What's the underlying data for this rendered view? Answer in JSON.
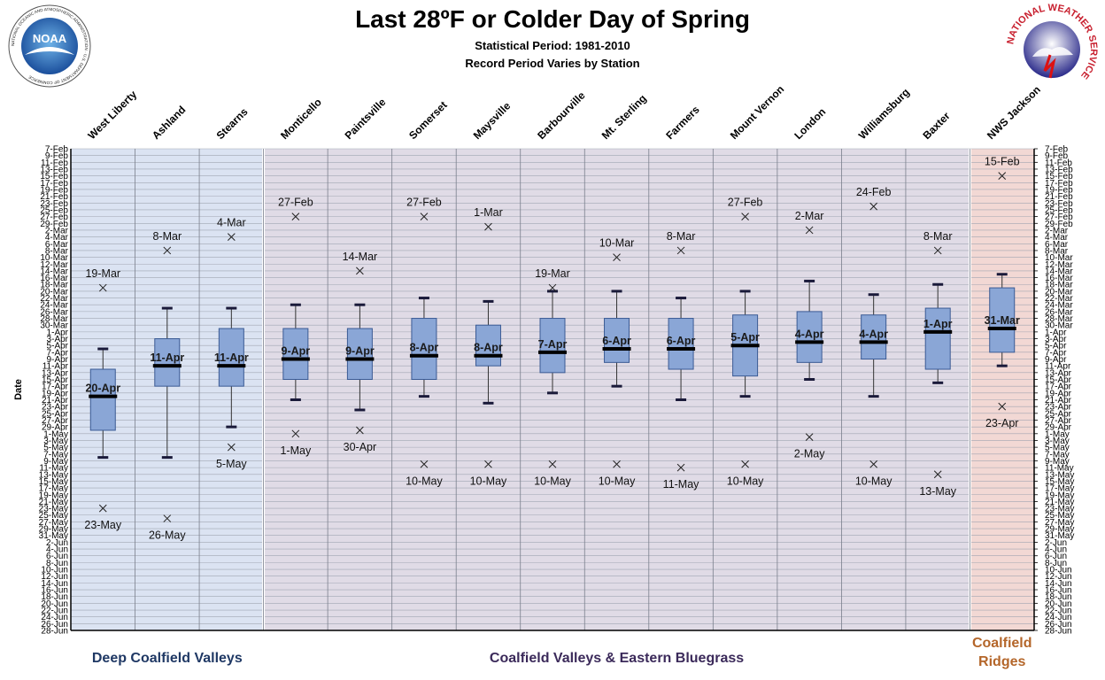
{
  "header": {
    "title": "Last 28ºF or Colder Day of Spring",
    "subtitle1": "Statistical Period: 1981-2010",
    "subtitle2": "Record Period Varies by Station"
  },
  "logos": {
    "noaa_text": "NOAA",
    "noaa_ring_text": "NATIONAL OCEANIC AND ATMOSPHERIC ADMINISTRATION · U.S. DEPARTMENT OF COMMERCE",
    "nws_ring_text": "NATIONAL WEATHER SERVICE"
  },
  "colors": {
    "deep_bg": "#dbe3f2",
    "mid_bg": "#e0dbe6",
    "ridge_bg": "#f2d8d4",
    "box_fill": "#8aa6d6",
    "box_stroke": "#3a5a94",
    "group1_label": "#1f3864",
    "group2_label": "#3b2a5a",
    "group3_label": "#b4662a"
  },
  "chart_data": {
    "type": "box",
    "ylabel": "Date",
    "y_axis_dates": [
      "7-Feb",
      "9-Feb",
      "11-Feb",
      "13-Feb",
      "15-Feb",
      "17-Feb",
      "19-Feb",
      "21-Feb",
      "23-Feb",
      "25-Feb",
      "27-Feb",
      "29-Feb",
      "2-Mar",
      "4-Mar",
      "6-Mar",
      "8-Mar",
      "10-Mar",
      "12-Mar",
      "14-Mar",
      "16-Mar",
      "18-Mar",
      "20-Mar",
      "22-Mar",
      "24-Mar",
      "26-Mar",
      "28-Mar",
      "30-Mar",
      "1-Apr",
      "3-Apr",
      "5-Apr",
      "7-Apr",
      "9-Apr",
      "11-Apr",
      "13-Apr",
      "15-Apr",
      "17-Apr",
      "19-Apr",
      "21-Apr",
      "23-Apr",
      "25-Apr",
      "27-Apr",
      "29-Apr",
      "1-May",
      "3-May",
      "5-May",
      "7-May",
      "9-May",
      "11-May",
      "13-May",
      "15-May",
      "17-May",
      "19-May",
      "21-May",
      "23-May",
      "25-May",
      "27-May",
      "29-May",
      "31-May",
      "2-Jun",
      "4-Jun",
      "6-Jun",
      "8-Jun",
      "10-Jun",
      "12-Jun",
      "14-Jun",
      "16-Jun",
      "18-Jun",
      "20-Jun",
      "22-Jun",
      "24-Jun",
      "26-Jun",
      "28-Jun"
    ],
    "groups": [
      {
        "label": "Deep Coalfield Valleys",
        "stations": 3
      },
      {
        "label": "Coalfield Valleys & Eastern Bluegrass",
        "stations": 11
      },
      {
        "label": "Coalfield Ridges",
        "stations": 1
      }
    ],
    "stations": [
      {
        "name": "West Liberty",
        "record_early": "19-Mar",
        "whisker_low": "6-Apr",
        "q1": "12-Apr",
        "median": "20-Apr",
        "q3": "30-Apr",
        "whisker_high": "8-May",
        "record_late": "23-May"
      },
      {
        "name": "Ashland",
        "record_early": "8-Mar",
        "whisker_low": "25-Mar",
        "q1": "3-Apr",
        "median": "11-Apr",
        "q3": "17-Apr",
        "whisker_high": "8-May",
        "record_late": "26-May"
      },
      {
        "name": "Stearns",
        "record_early": "4-Mar",
        "whisker_low": "25-Mar",
        "q1": "31-Mar",
        "median": "11-Apr",
        "q3": "17-Apr",
        "whisker_high": "29-Apr",
        "record_late": "5-May"
      },
      {
        "name": "Monticello",
        "record_early": "27-Feb",
        "whisker_low": "24-Mar",
        "q1": "31-Mar",
        "median": "9-Apr",
        "q3": "15-Apr",
        "whisker_high": "21-Apr",
        "record_late": "1-May"
      },
      {
        "name": "Paintsville",
        "record_early": "14-Mar",
        "whisker_low": "24-Mar",
        "q1": "31-Mar",
        "median": "9-Apr",
        "q3": "15-Apr",
        "whisker_high": "24-Apr",
        "record_late": "30-Apr"
      },
      {
        "name": "Somerset",
        "record_early": "27-Feb",
        "whisker_low": "22-Mar",
        "q1": "28-Mar",
        "median": "8-Apr",
        "q3": "15-Apr",
        "whisker_high": "20-Apr",
        "record_late": "10-May"
      },
      {
        "name": "Maysville",
        "record_early": "1-Mar",
        "whisker_low": "23-Mar",
        "q1": "30-Mar",
        "median": "8-Apr",
        "q3": "11-Apr",
        "whisker_high": "22-Apr",
        "record_late": "10-May"
      },
      {
        "name": "Barbourville",
        "record_early": "19-Mar",
        "whisker_low": "20-Mar",
        "q1": "28-Mar",
        "median": "7-Apr",
        "q3": "13-Apr",
        "whisker_high": "19-Apr",
        "record_late": "10-May"
      },
      {
        "name": "Mt. Sterling",
        "record_early": "10-Mar",
        "whisker_low": "20-Mar",
        "q1": "28-Mar",
        "median": "6-Apr",
        "q3": "10-Apr",
        "whisker_high": "17-Apr",
        "record_late": "10-May"
      },
      {
        "name": "Farmers",
        "record_early": "8-Mar",
        "whisker_low": "22-Mar",
        "q1": "28-Mar",
        "median": "6-Apr",
        "q3": "12-Apr",
        "whisker_high": "21-Apr",
        "record_late": "11-May"
      },
      {
        "name": "Mount Vernon",
        "record_early": "27-Feb",
        "whisker_low": "20-Mar",
        "q1": "27-Mar",
        "median": "5-Apr",
        "q3": "14-Apr",
        "whisker_high": "20-Apr",
        "record_late": "10-May"
      },
      {
        "name": "London",
        "record_early": "2-Mar",
        "whisker_low": "17-Mar",
        "q1": "26-Mar",
        "median": "4-Apr",
        "q3": "10-Apr",
        "whisker_high": "15-Apr",
        "record_late": "2-May"
      },
      {
        "name": "Williamsburg",
        "record_early": "24-Feb",
        "whisker_low": "21-Mar",
        "q1": "27-Mar",
        "median": "4-Apr",
        "q3": "9-Apr",
        "whisker_high": "20-Apr",
        "record_late": "10-May"
      },
      {
        "name": "Baxter",
        "record_early": "8-Mar",
        "whisker_low": "18-Mar",
        "q1": "25-Mar",
        "median": "1-Apr",
        "q3": "12-Apr",
        "whisker_high": "16-Apr",
        "record_late": "13-May"
      },
      {
        "name": "NWS Jackson",
        "record_early": "15-Feb",
        "whisker_low": "15-Mar",
        "q1": "19-Mar",
        "median": "31-Mar",
        "q3": "7-Apr",
        "whisker_high": "11-Apr",
        "record_late": "23-Apr"
      }
    ],
    "labeled_values": [
      "record_early",
      "median",
      "record_late"
    ]
  }
}
